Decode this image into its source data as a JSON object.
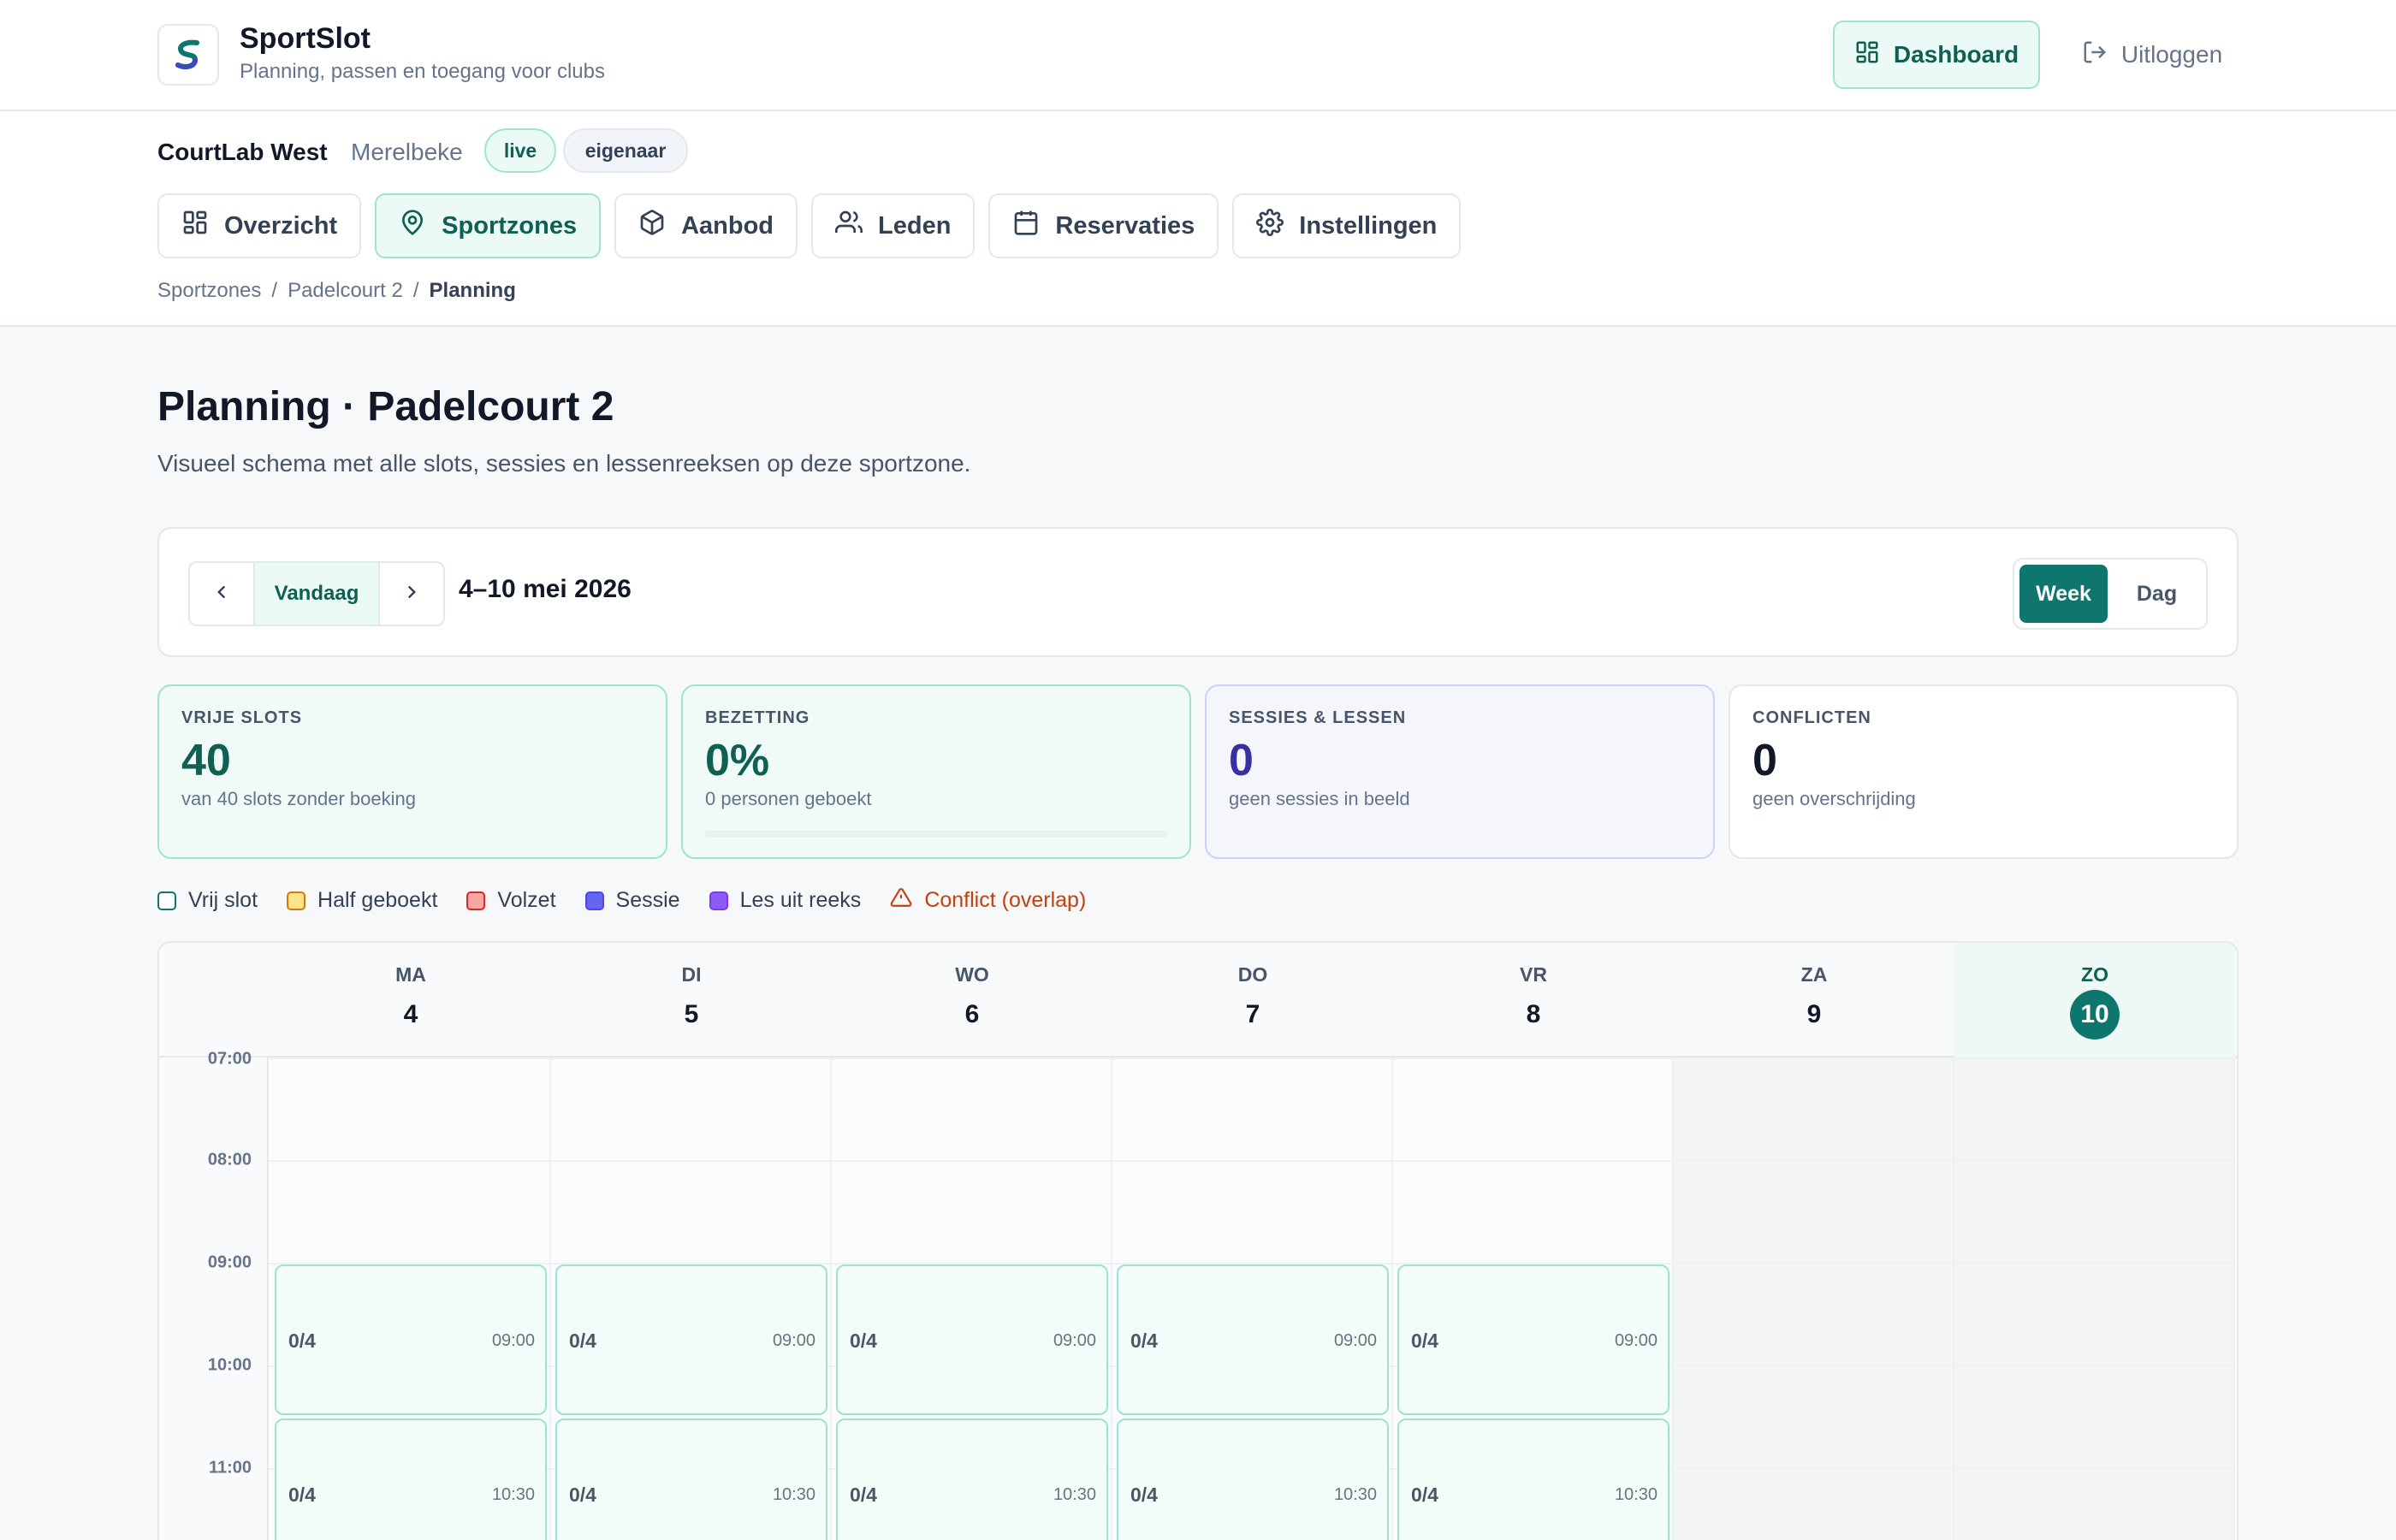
{
  "app": {
    "name": "SportSlot",
    "tagline": "Planning, passen en toegang voor clubs",
    "dashboard_label": "Dashboard",
    "logout_label": "Uitloggen"
  },
  "org": {
    "name": "CourtLab West",
    "city": "Merelbeke",
    "badges": [
      "live",
      "eigenaar"
    ]
  },
  "tabs": [
    {
      "label": "Overzicht",
      "icon": "grid-icon",
      "active": false
    },
    {
      "label": "Sportzones",
      "icon": "map-pin-icon",
      "active": true
    },
    {
      "label": "Aanbod",
      "icon": "package-icon",
      "active": false
    },
    {
      "label": "Leden",
      "icon": "users-icon",
      "active": false
    },
    {
      "label": "Reservaties",
      "icon": "calendar-icon",
      "active": false
    },
    {
      "label": "Instellingen",
      "icon": "gear-icon",
      "active": false
    }
  ],
  "breadcrumb": [
    "Sportzones",
    "Padelcourt 2",
    "Planning"
  ],
  "page": {
    "title": "Planning · Padelcourt 2",
    "subtitle": "Visueel schema met alle slots, sessies en lessenreeksen op deze sportzone."
  },
  "toolbar": {
    "today_label": "Vandaag",
    "range": "4–10 mei 2026",
    "views": [
      "Week",
      "Dag"
    ],
    "active_view": "Week"
  },
  "stats": [
    {
      "label": "VRIJE SLOTS",
      "value": "40",
      "desc": "van 40 slots zonder boeking"
    },
    {
      "label": "BEZETTING",
      "value": "0%",
      "desc": "0 personen geboekt",
      "progress": 0
    },
    {
      "label": "SESSIES & LESSEN",
      "value": "0",
      "desc": "geen sessies in beeld"
    },
    {
      "label": "CONFLICTEN",
      "value": "0",
      "desc": "geen overschrijding"
    }
  ],
  "legend": [
    {
      "label": "Vrij slot",
      "color": "#ffffff",
      "border": "#0f766e"
    },
    {
      "label": "Half geboekt",
      "color": "#fde68a",
      "border": "#d97706"
    },
    {
      "label": "Volzet",
      "color": "#fca5a5",
      "border": "#dc2626"
    },
    {
      "label": "Sessie",
      "color": "#6366f1",
      "border": "#4f46e5"
    },
    {
      "label": "Les uit reeks",
      "color": "#8b5cf6",
      "border": "#7c3aed"
    },
    {
      "label": "Conflict (overlap)",
      "icon": "warning-icon",
      "color": "#c2410c"
    }
  ],
  "calendar": {
    "days": [
      {
        "name": "MA",
        "date": "4"
      },
      {
        "name": "DI",
        "date": "5"
      },
      {
        "name": "WO",
        "date": "6"
      },
      {
        "name": "DO",
        "date": "7"
      },
      {
        "name": "VR",
        "date": "8"
      },
      {
        "name": "ZA",
        "date": "9"
      },
      {
        "name": "ZO",
        "date": "10",
        "today": true
      }
    ],
    "hours": [
      "07:00",
      "08:00",
      "09:00",
      "10:00",
      "11:00"
    ],
    "slots": [
      {
        "day": 0,
        "start": "09:00",
        "occupancy": "0/4"
      },
      {
        "day": 1,
        "start": "09:00",
        "occupancy": "0/4"
      },
      {
        "day": 2,
        "start": "09:00",
        "occupancy": "0/4"
      },
      {
        "day": 3,
        "start": "09:00",
        "occupancy": "0/4"
      },
      {
        "day": 4,
        "start": "09:00",
        "occupancy": "0/4"
      },
      {
        "day": 0,
        "start": "10:30",
        "occupancy": "0/4"
      },
      {
        "day": 1,
        "start": "10:30",
        "occupancy": "0/4"
      },
      {
        "day": 2,
        "start": "10:30",
        "occupancy": "0/4"
      },
      {
        "day": 3,
        "start": "10:30",
        "occupancy": "0/4"
      },
      {
        "day": 4,
        "start": "10:30",
        "occupancy": "0/4"
      }
    ]
  }
}
